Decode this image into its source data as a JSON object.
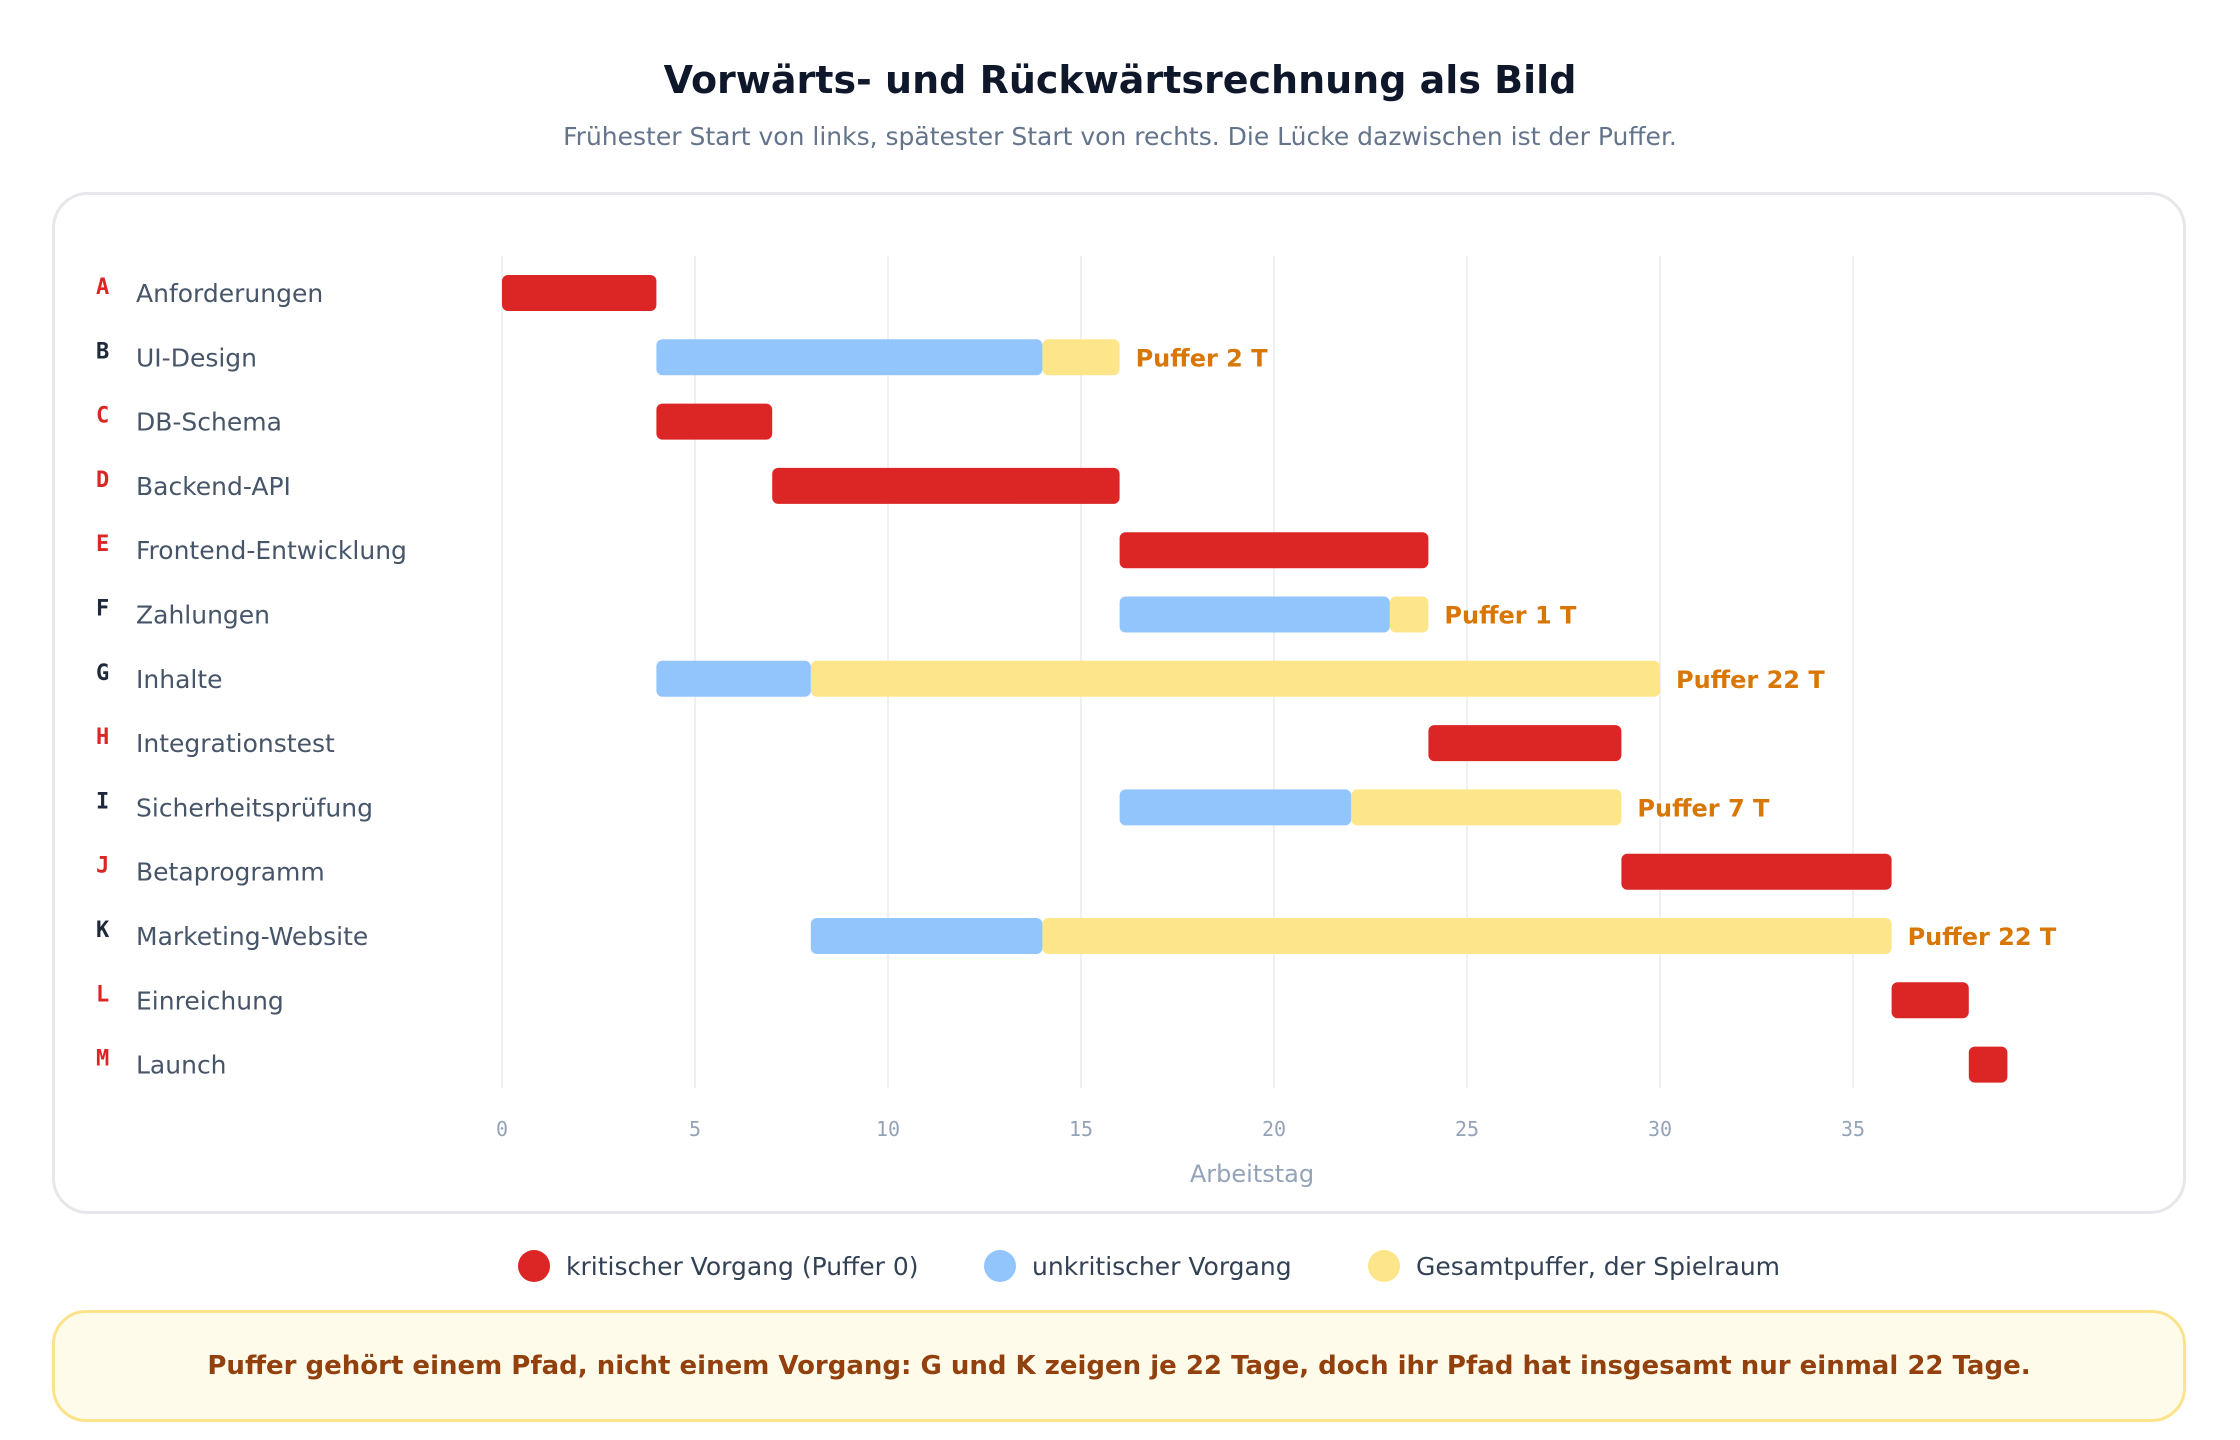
{
  "header": {
    "title": "Vorwärts- und Rückwärtsrechnung als Bild",
    "subtitle": "Frühester Start von links, spätester Start von rechts. Die Lücke dazwischen ist der Puffer."
  },
  "colors": {
    "critical": "#dc2626",
    "noncritical": "#93c5fd",
    "float": "#fde68a",
    "float_label": "#d97706",
    "critical_id": "#dc2626",
    "noncritical_id": "#1e293b"
  },
  "chart_data": {
    "type": "gantt",
    "xlabel": "Arbeitstag",
    "xlim": [
      0,
      40
    ],
    "xticks": [
      0,
      5,
      10,
      15,
      20,
      25,
      30,
      35
    ],
    "grid": true,
    "float_label_prefix": "Puffer",
    "float_label_unit": "T",
    "tasks": [
      {
        "id": "A",
        "name": "Anforderungen",
        "start": 0,
        "duration": 4,
        "float": 0,
        "critical": true
      },
      {
        "id": "B",
        "name": "UI-Design",
        "start": 4,
        "duration": 10,
        "float": 2,
        "critical": false
      },
      {
        "id": "C",
        "name": "DB-Schema",
        "start": 4,
        "duration": 3,
        "float": 0,
        "critical": true
      },
      {
        "id": "D",
        "name": "Backend-API",
        "start": 7,
        "duration": 9,
        "float": 0,
        "critical": true
      },
      {
        "id": "E",
        "name": "Frontend-Entwicklung",
        "start": 16,
        "duration": 8,
        "float": 0,
        "critical": true
      },
      {
        "id": "F",
        "name": "Zahlungen",
        "start": 16,
        "duration": 7,
        "float": 1,
        "critical": false
      },
      {
        "id": "G",
        "name": "Inhalte",
        "start": 4,
        "duration": 4,
        "float": 22,
        "critical": false
      },
      {
        "id": "H",
        "name": "Integrationstest",
        "start": 24,
        "duration": 5,
        "float": 0,
        "critical": true
      },
      {
        "id": "I",
        "name": "Sicherheitsprüfung",
        "start": 16,
        "duration": 6,
        "float": 7,
        "critical": false
      },
      {
        "id": "J",
        "name": "Betaprogramm",
        "start": 29,
        "duration": 7,
        "float": 0,
        "critical": true
      },
      {
        "id": "K",
        "name": "Marketing-Website",
        "start": 8,
        "duration": 6,
        "float": 22,
        "critical": false
      },
      {
        "id": "L",
        "name": "Einreichung",
        "start": 36,
        "duration": 2,
        "float": 0,
        "critical": true
      },
      {
        "id": "M",
        "name": "Launch",
        "start": 38,
        "duration": 1,
        "float": 0,
        "critical": true
      }
    ]
  },
  "legend": {
    "critical": "kritischer Vorgang (Puffer 0)",
    "noncritical": "unkritischer Vorgang",
    "float": "Gesamtpuffer, der Spielraum"
  },
  "note": "Puffer gehört einem Pfad, nicht einem Vorgang: G und K zeigen je 22 Tage, doch ihr Pfad hat insgesamt nur einmal 22 Tage."
}
